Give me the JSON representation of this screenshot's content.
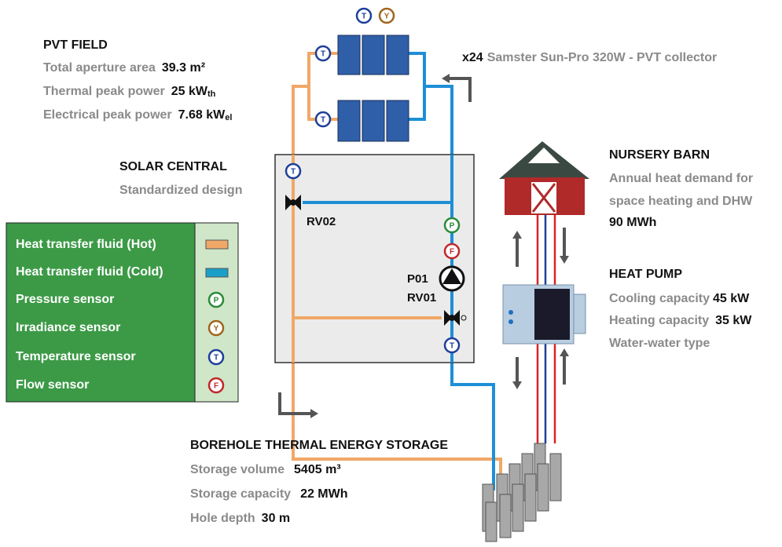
{
  "pvt_field": {
    "title": "PVT FIELD",
    "rows": [
      {
        "label": "Total aperture area",
        "value": "39.3 m²"
      },
      {
        "label": "Thermal peak power",
        "value": "25 kW",
        "sub": "th"
      },
      {
        "label": "Electrical peak power",
        "value": "7.68 kW",
        "sub": "el"
      }
    ]
  },
  "collector": {
    "count": "x24",
    "name": "Samster Sun-Pro 320W - PVT collector"
  },
  "solar_central": {
    "title": "SOLAR CENTRAL",
    "subtitle": "Standardized design"
  },
  "components": {
    "rv02": "RV02",
    "p01": "P01",
    "rv01": "RV01"
  },
  "sensor_letters": {
    "temperature": "T",
    "irradiance": "Y",
    "pressure": "P",
    "flow": "F"
  },
  "legend": [
    "Heat transfer fluid (Hot)",
    "Heat transfer fluid (Cold)",
    "Pressure sensor",
    "Irradiance sensor",
    "Temperature sensor",
    "Flow sensor"
  ],
  "nursery_barn": {
    "title": "NURSERY BARN",
    "lines": [
      "Annual heat demand for",
      "space heating and DHW"
    ],
    "value": "90 MWh"
  },
  "heat_pump": {
    "title": "HEAT PUMP",
    "rows": [
      {
        "label": "Cooling capacity",
        "value": "45 kW"
      },
      {
        "label": "Heating capacity",
        "value": "35 kW"
      }
    ],
    "type": "Water-water type"
  },
  "borehole": {
    "title": "BOREHOLE THERMAL ENERGY STORAGE",
    "rows": [
      {
        "label": "Storage volume",
        "value": "5405 m³"
      },
      {
        "label": "Storage capacity",
        "value": "22 MWh"
      },
      {
        "label": "Hole depth",
        "value": "30 m"
      }
    ]
  }
}
